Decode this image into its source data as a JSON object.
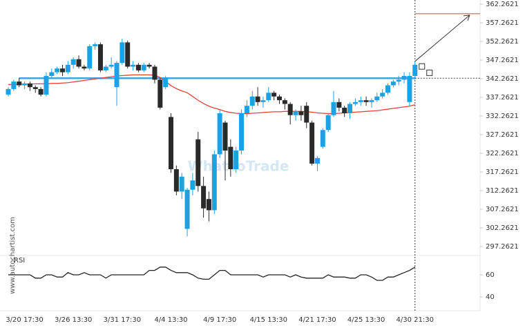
{
  "chart_data": {
    "type": "candlestick",
    "watermark": "WhatToTrade",
    "side_label": "www.autochartist.com",
    "rsi_label": "RSI",
    "categories": [
      null,
      null,
      null,
      "3/20 17:30",
      null,
      null,
      null,
      null,
      null,
      null,
      null,
      null,
      "3/26 13:30",
      null,
      null,
      null,
      null,
      null,
      null,
      null,
      null,
      "3/31 17:30",
      null,
      null,
      null,
      null,
      null,
      null,
      null,
      null,
      "4/4 13:30",
      null,
      null,
      null,
      null,
      null,
      null,
      null,
      null,
      "4/9 17:30",
      null,
      null,
      null,
      null,
      null,
      null,
      null,
      null,
      "4/15 13:30",
      null,
      null,
      null,
      null,
      null,
      null,
      null,
      null,
      "4/21 17:30",
      null,
      null,
      null,
      null,
      null,
      null,
      null,
      null,
      "4/25 13:30",
      null,
      null,
      null,
      null,
      null,
      null,
      null,
      null,
      "4/30 21:30"
    ],
    "open": [
      338,
      339.5,
      341.5,
      340.5,
      341,
      340,
      339.5,
      338,
      343,
      344,
      345,
      344,
      346,
      347.5,
      345.5,
      345,
      351,
      351.5,
      344.5,
      345.5,
      340,
      346.5,
      352,
      345.5,
      346,
      344.5,
      346,
      345.5,
      342,
      340,
      332,
      318,
      312,
      302,
      312.5,
      326,
      313.5,
      310,
      307,
      322,
      330.5,
      324,
      318,
      323,
      333,
      335,
      337.5,
      336,
      336.5,
      338.5,
      337.5,
      336.5,
      335.5,
      332.5,
      333.5,
      335,
      330.5,
      319.5,
      324,
      328.5,
      332.5,
      336,
      334.5,
      333,
      335.5,
      336,
      336.5,
      336,
      336.5,
      337.5,
      338.5,
      340.5,
      341.5,
      342,
      336,
      343
    ],
    "high": [
      340,
      342,
      342.5,
      341.5,
      341.5,
      340.5,
      340,
      344,
      345,
      345.5,
      346,
      347,
      348,
      348.5,
      346,
      351.5,
      352,
      352,
      346,
      348,
      347,
      353,
      352.5,
      347,
      346.5,
      346.5,
      346.5,
      346,
      342.5,
      343,
      333,
      319,
      317,
      313,
      317,
      328,
      316,
      312,
      323,
      334,
      331,
      326,
      324,
      334,
      336.5,
      339,
      340,
      337.5,
      340,
      339,
      338,
      337,
      336,
      334,
      335,
      336,
      331,
      321.5,
      329,
      333,
      339,
      337,
      335,
      336,
      337,
      337.5,
      337.5,
      337,
      338.5,
      339.5,
      341,
      342,
      343,
      344,
      344,
      347
    ],
    "low": [
      337.5,
      339,
      340,
      339.5,
      339,
      338.5,
      337.5,
      337.5,
      342.5,
      343.5,
      343,
      343.5,
      345,
      345,
      344.5,
      344.5,
      350,
      344,
      344,
      345,
      335,
      346,
      345,
      344.5,
      344,
      344,
      345,
      341,
      334,
      339.5,
      317,
      311,
      310,
      300,
      311,
      312,
      305,
      304,
      306,
      321,
      315,
      316,
      317,
      322,
      332,
      334,
      335,
      334.5,
      336,
      336.5,
      335.5,
      334,
      330,
      331,
      331,
      329,
      319,
      317.5,
      323.5,
      328,
      332,
      333.5,
      332,
      331.5,
      335,
      335,
      335,
      334.5,
      336,
      337,
      338,
      340,
      340.5,
      341,
      335,
      342
    ],
    "close": [
      339.5,
      341.5,
      340.5,
      341,
      340,
      339.5,
      338,
      343,
      344,
      345,
      344,
      346,
      347.5,
      345.5,
      345,
      351,
      351.5,
      344.5,
      345.5,
      346,
      346.5,
      352,
      345.5,
      346,
      344.5,
      346,
      345.5,
      342,
      334.5,
      342.5,
      318,
      312,
      316,
      312.5,
      315,
      313.5,
      307.5,
      307,
      322,
      333,
      323,
      318,
      323,
      333,
      335,
      337.5,
      336,
      336.5,
      338.5,
      337.5,
      336.5,
      335.5,
      332.5,
      333.5,
      332.5,
      330.5,
      319.5,
      321,
      328.5,
      332.5,
      336,
      334.5,
      333,
      335.5,
      336,
      336.5,
      336,
      336.5,
      337.5,
      338.5,
      340.5,
      341.5,
      342,
      343,
      343,
      346
    ],
    "up_color": "#1da1e2",
    "down_color": "#2a2a2a",
    "ma": {
      "color": "#e8403a",
      "values": [
        340.7,
        340.7,
        340.8,
        340.8,
        340.8,
        340.9,
        340.9,
        340.9,
        341,
        341,
        341.1,
        341.2,
        341.4,
        341.6,
        341.8,
        342,
        342.2,
        342.4,
        342.6,
        342.8,
        343,
        343.1,
        343.2,
        343.3,
        343.3,
        343.3,
        343.3,
        343.2,
        342.6,
        341.6,
        340.4,
        339.6,
        339,
        338.5,
        337.5,
        336.5,
        335.6,
        334.9,
        334.4,
        334,
        333.5,
        333.2,
        333,
        332.9,
        332.9,
        333,
        333.1,
        333.2,
        333.3,
        333.4,
        333.4,
        333.5,
        333.5,
        333.5,
        333.5,
        333.4,
        333.3,
        333.1,
        333,
        332.9,
        332.9,
        333,
        333.1,
        333.2,
        333.3,
        333.4,
        333.5,
        333.6,
        333.7,
        333.9,
        334.1,
        334.3,
        334.5,
        334.7,
        334.9,
        335.3
      ]
    },
    "support_level": 342.4,
    "support_color": "#3ba6df",
    "target_level": 359.7,
    "target_color": "#f07a3a",
    "ylim": [
      294.855,
      363.373
    ],
    "yticks": [
      362.2621,
      357.2621,
      352.2621,
      347.2621,
      342.2621,
      337.2621,
      332.2621,
      327.2621,
      322.2621,
      317.2621,
      312.2621,
      307.2621,
      302.2621,
      297.2621
    ],
    "rsi": {
      "color": "#222222",
      "values": [
        60,
        60,
        60,
        60,
        60,
        57,
        57,
        60,
        60,
        58,
        58,
        62,
        60,
        60,
        62,
        60,
        60,
        60,
        57,
        60,
        60,
        60,
        60,
        60,
        60,
        60,
        64,
        64,
        67,
        67,
        64,
        62,
        62,
        62,
        60,
        57,
        56,
        56,
        60,
        64,
        64,
        60,
        60,
        60,
        60,
        60,
        60,
        58,
        60,
        60,
        60,
        60,
        58,
        60,
        58,
        57,
        57,
        57,
        57,
        60,
        58,
        58,
        58,
        57,
        57,
        60,
        60,
        58,
        55,
        55,
        58,
        58,
        60,
        62,
        64,
        67
      ]
    },
    "rsi_ylim": [
      27.5,
      77.5
    ],
    "rsi_yticks": [
      60,
      40
    ]
  }
}
